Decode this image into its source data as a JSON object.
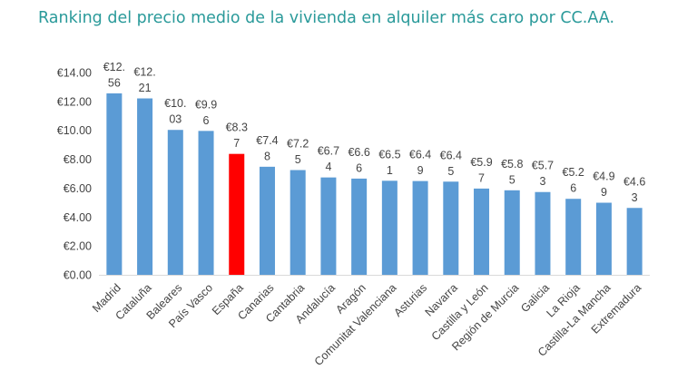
{
  "title": "Ranking del precio medio de la vivienda en alquiler más caro por CC.AA.",
  "colors": {
    "title": "#2a9a9a",
    "bar": "#5b9bd5",
    "highlight": "#ff0000",
    "axis": "#d9d9d9"
  },
  "chart_data": {
    "type": "bar",
    "title": "",
    "xlabel": "",
    "ylabel": "",
    "ylim": [
      0,
      14
    ],
    "y_ticks": [
      "€0.00",
      "€2.00",
      "€4.00",
      "€6.00",
      "€8.00",
      "€10.00",
      "€12.00",
      "€14.00"
    ],
    "grid": false,
    "highlight_category": "España",
    "categories": [
      "Madrid",
      "Cataluña",
      "Baleares",
      "País Vasco",
      "España",
      "Canarias",
      "Cantabria",
      "Andalucía",
      "Aragón",
      "Comunitat Valenciana",
      "Asturias",
      "Navarra",
      "Castilla y León",
      "Región de Murcia",
      "Galicia",
      "La Rioja",
      "Castilla-La Mancha",
      "Extremadura"
    ],
    "values": [
      12.56,
      12.21,
      10.03,
      9.96,
      8.37,
      7.48,
      7.25,
      6.74,
      6.66,
      6.51,
      6.49,
      6.45,
      5.97,
      5.85,
      5.73,
      5.26,
      4.99,
      4.63
    ],
    "data_labels": [
      [
        "€12.",
        "56"
      ],
      [
        "€12.",
        "21"
      ],
      [
        "€10.",
        "03"
      ],
      [
        "€9.9",
        "6"
      ],
      [
        "€8.3",
        "7"
      ],
      [
        "€7.4",
        "8"
      ],
      [
        "€7.2",
        "5"
      ],
      [
        "€6.7",
        "4"
      ],
      [
        "€6.6",
        "6"
      ],
      [
        "€6.5",
        "1"
      ],
      [
        "€6.4",
        "9"
      ],
      [
        "€6.4",
        "5"
      ],
      [
        "€5.9",
        "7"
      ],
      [
        "€5.8",
        "5"
      ],
      [
        "€5.7",
        "3"
      ],
      [
        "€5.2",
        "6"
      ],
      [
        "€4.9",
        "9"
      ],
      [
        "€4.6",
        "3"
      ]
    ]
  }
}
